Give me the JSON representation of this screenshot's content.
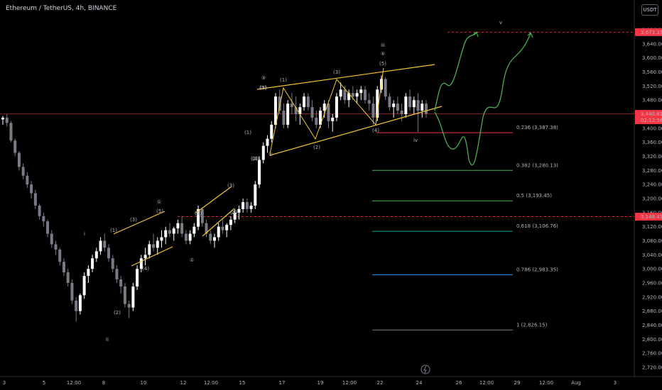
{
  "header": {
    "symbol_title": "Ethereum / TetherUS, 4h, BINANCE",
    "currency_button": "USDT"
  },
  "colors": {
    "background": "#000000",
    "candle_up": "#ffffff",
    "candle_down": "#787b86",
    "wave_yellow": "#f7c531",
    "wave_teal": "#26a69a",
    "projection_green": "#4caf50",
    "price_line_red": "#f23645",
    "fib_0236": "#f23645",
    "fib_0382": "#4caf50",
    "fib_05": "#4caf50",
    "fib_0618": "#089981",
    "fib_0786": "#2196f3",
    "fib_1": "#787b86"
  },
  "chart_data": {
    "type": "candlestick",
    "title": "Ethereum / TetherUS, 4h, BINANCE",
    "y_axis": {
      "ticks": [
        3680,
        3640,
        3600,
        3560,
        3520,
        3480,
        3440,
        3400,
        3360,
        3320,
        3280,
        3240,
        3200,
        3160,
        3120,
        3080,
        3040,
        3000,
        2960,
        2920,
        2880,
        2840,
        2800,
        2760,
        2720
      ],
      "ylim": [
        2700,
        3700
      ]
    },
    "x_axis": {
      "ticks": [
        "3",
        "5",
        "12:00",
        "8",
        "10",
        "12",
        "12:00",
        "15",
        "17",
        "19",
        "12:00",
        "22",
        "24",
        "26",
        "12:00",
        "29",
        "12:00",
        "Aug",
        "3"
      ]
    },
    "price_labels": {
      "target": {
        "value": "3,673.33"
      },
      "current": {
        "value": "3,440.81",
        "countdown": "02:12:56"
      },
      "support": {
        "value": "3,148.41"
      }
    },
    "candles": [
      [
        3425,
        3435,
        3410,
        3430
      ],
      [
        3430,
        3440,
        3405,
        3415
      ],
      [
        3415,
        3420,
        3360,
        3365
      ],
      [
        3365,
        3370,
        3320,
        3330
      ],
      [
        3330,
        3335,
        3280,
        3290
      ],
      [
        3290,
        3300,
        3255,
        3265
      ],
      [
        3265,
        3275,
        3230,
        3240
      ],
      [
        3240,
        3250,
        3200,
        3215
      ],
      [
        3215,
        3225,
        3170,
        3180
      ],
      [
        3180,
        3185,
        3140,
        3150
      ],
      [
        3150,
        3160,
        3120,
        3135
      ],
      [
        3135,
        3140,
        3090,
        3100
      ],
      [
        3100,
        3110,
        3060,
        3070
      ],
      [
        3070,
        3080,
        3040,
        3055
      ],
      [
        3055,
        3060,
        3010,
        3020
      ],
      [
        3020,
        3030,
        2980,
        2990
      ],
      [
        2990,
        3000,
        2950,
        2960
      ],
      [
        2960,
        2970,
        2900,
        2910
      ],
      [
        2910,
        2920,
        2850,
        2880
      ],
      [
        2880,
        2930,
        2870,
        2925
      ],
      [
        2925,
        2990,
        2915,
        2980
      ],
      [
        2980,
        3010,
        2960,
        3000
      ],
      [
        3000,
        3040,
        2990,
        3030
      ],
      [
        3030,
        3060,
        3020,
        3050
      ],
      [
        3050,
        3090,
        3040,
        3080
      ],
      [
        3080,
        3100,
        3050,
        3060
      ],
      [
        3060,
        3070,
        3020,
        3030
      ],
      [
        3030,
        3040,
        2990,
        3000
      ],
      [
        3000,
        3010,
        2960,
        2970
      ],
      [
        2970,
        2980,
        2930,
        2950
      ],
      [
        2950,
        2960,
        2890,
        2900
      ],
      [
        2900,
        2910,
        2860,
        2890
      ],
      [
        2890,
        2960,
        2880,
        2950
      ],
      [
        2950,
        3010,
        2940,
        3000
      ],
      [
        3000,
        3040,
        2990,
        3030
      ],
      [
        3030,
        3060,
        3010,
        3040
      ],
      [
        3040,
        3080,
        3030,
        3070
      ],
      [
        3070,
        3100,
        3050,
        3060
      ],
      [
        3060,
        3090,
        3040,
        3080
      ],
      [
        3080,
        3110,
        3060,
        3090
      ],
      [
        3090,
        3120,
        3070,
        3110
      ],
      [
        3110,
        3130,
        3090,
        3100
      ],
      [
        3100,
        3120,
        3080,
        3115
      ],
      [
        3115,
        3140,
        3100,
        3130
      ],
      [
        3130,
        3150,
        3090,
        3100
      ],
      [
        3100,
        3110,
        3070,
        3080
      ],
      [
        3080,
        3110,
        3070,
        3100
      ],
      [
        3100,
        3130,
        3090,
        3120
      ],
      [
        3120,
        3180,
        3110,
        3170
      ],
      [
        3170,
        3175,
        3120,
        3130
      ],
      [
        3130,
        3140,
        3090,
        3100
      ],
      [
        3100,
        3110,
        3070,
        3080
      ],
      [
        3080,
        3100,
        3060,
        3090
      ],
      [
        3090,
        3130,
        3080,
        3120
      ],
      [
        3120,
        3140,
        3100,
        3110
      ],
      [
        3110,
        3130,
        3090,
        3125
      ],
      [
        3125,
        3150,
        3110,
        3140
      ],
      [
        3140,
        3170,
        3130,
        3160
      ],
      [
        3160,
        3180,
        3140,
        3170
      ],
      [
        3170,
        3200,
        3160,
        3190
      ],
      [
        3190,
        3200,
        3160,
        3170
      ],
      [
        3170,
        3190,
        3160,
        3180
      ],
      [
        3180,
        3250,
        3170,
        3240
      ],
      [
        3240,
        3320,
        3230,
        3310
      ],
      [
        3310,
        3360,
        3300,
        3350
      ],
      [
        3350,
        3380,
        3330,
        3370
      ],
      [
        3370,
        3420,
        3360,
        3410
      ],
      [
        3410,
        3500,
        3400,
        3490
      ],
      [
        3490,
        3510,
        3440,
        3450
      ],
      [
        3450,
        3470,
        3400,
        3410
      ],
      [
        3410,
        3480,
        3400,
        3470
      ],
      [
        3470,
        3500,
        3440,
        3460
      ],
      [
        3460,
        3490,
        3420,
        3440
      ],
      [
        3440,
        3470,
        3410,
        3460
      ],
      [
        3460,
        3500,
        3450,
        3490
      ],
      [
        3490,
        3500,
        3450,
        3460
      ],
      [
        3460,
        3480,
        3420,
        3430
      ],
      [
        3430,
        3450,
        3400,
        3410
      ],
      [
        3410,
        3460,
        3400,
        3450
      ],
      [
        3450,
        3480,
        3430,
        3470
      ],
      [
        3470,
        3480,
        3400,
        3420
      ],
      [
        3420,
        3440,
        3390,
        3430
      ],
      [
        3430,
        3500,
        3420,
        3490
      ],
      [
        3490,
        3530,
        3480,
        3510
      ],
      [
        3510,
        3520,
        3470,
        3480
      ],
      [
        3480,
        3510,
        3460,
        3500
      ],
      [
        3500,
        3520,
        3480,
        3490
      ],
      [
        3490,
        3510,
        3470,
        3500
      ],
      [
        3500,
        3520,
        3480,
        3510
      ],
      [
        3510,
        3520,
        3470,
        3480
      ],
      [
        3480,
        3500,
        3450,
        3470
      ],
      [
        3470,
        3490,
        3410,
        3430
      ],
      [
        3430,
        3520,
        3420,
        3510
      ],
      [
        3510,
        3550,
        3500,
        3540
      ],
      [
        3540,
        3545,
        3480,
        3490
      ],
      [
        3490,
        3500,
        3450,
        3460
      ],
      [
        3460,
        3480,
        3430,
        3470
      ],
      [
        3470,
        3490,
        3440,
        3450
      ],
      [
        3450,
        3470,
        3420,
        3440
      ],
      [
        3440,
        3500,
        3430,
        3490
      ],
      [
        3490,
        3510,
        3450,
        3460
      ],
      [
        3460,
        3490,
        3440,
        3480
      ],
      [
        3480,
        3500,
        3390,
        3450
      ],
      [
        3450,
        3480,
        3430,
        3470
      ],
      [
        3470,
        3480,
        3430,
        3441
      ]
    ],
    "fibonacci": [
      {
        "ratio": "0.236",
        "price": "3,387.38",
        "label": "0.236 (3,387.38)"
      },
      {
        "ratio": "0.382",
        "price": "3,280.13",
        "label": "0.382 (3,280.13)"
      },
      {
        "ratio": "0.5",
        "price": "3,193.45",
        "label": "0.5 (3,193.45)"
      },
      {
        "ratio": "0.618",
        "price": "3,106.76",
        "label": "0.618 (3,106.76)"
      },
      {
        "ratio": "0.786",
        "price": "2,983.35",
        "label": "0.786 (2,983.35)"
      },
      {
        "ratio": "1",
        "price": "2,826.15",
        "label": "1 (2,826.15)"
      }
    ],
    "wave_labels": [
      "i",
      "ii",
      "iii",
      "iv",
      "v",
      "(1)",
      "(2)",
      "(3)",
      "(4)",
      "(5)",
      "①",
      "②",
      "③",
      "④",
      "⑤"
    ],
    "annotations": {
      "major_waves": [
        {
          "label": "i"
        },
        {
          "label": "ii"
        },
        {
          "label": "iii"
        },
        {
          "label": "iv"
        },
        {
          "label": "v"
        }
      ],
      "circled": [
        {
          "label": "①"
        },
        {
          "label": "②"
        },
        {
          "label": "③"
        },
        {
          "label": "④"
        },
        {
          "label": "⑤"
        }
      ],
      "minor": [
        {
          "label": "(1)"
        },
        {
          "label": "(2)"
        },
        {
          "label": "(3)"
        },
        {
          "label": "(4)"
        },
        {
          "label": "(5)"
        },
        {
          "label": "(1)"
        },
        {
          "label": "(2)"
        },
        {
          "label": "(3)"
        },
        {
          "label": "(4)"
        },
        {
          "label": "(5)"
        },
        {
          "label": "(1)"
        },
        {
          "label": "(2)"
        },
        {
          "label": "(3)"
        },
        {
          "label": "(4)"
        },
        {
          "label": "(5)"
        },
        {
          "label": "(1)"
        },
        {
          "label": "(2)"
        },
        {
          "label": "(3)"
        },
        {
          "label": "(4)"
        },
        {
          "label": "(5)"
        }
      ]
    }
  }
}
